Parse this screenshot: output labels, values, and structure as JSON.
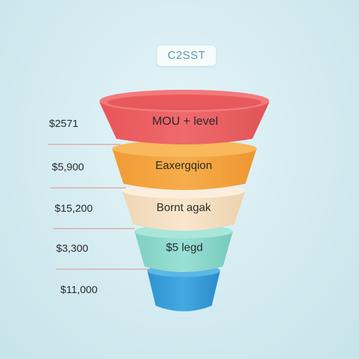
{
  "title": "C2SST",
  "stages": [
    {
      "label": "MOU + level",
      "value": "$2571",
      "color": "#ec6467"
    },
    {
      "label": "Eaxergqion",
      "value": "$5,900",
      "color": "#f4a53f"
    },
    {
      "label": "Bornt agak",
      "value": "$15,200",
      "color": "#f6e2c6"
    },
    {
      "label": "$5 legd",
      "value": "$3,300",
      "color": "#8ed8cc"
    },
    {
      "label": "",
      "value": "$11,000",
      "color": "#39a0da"
    }
  ]
}
